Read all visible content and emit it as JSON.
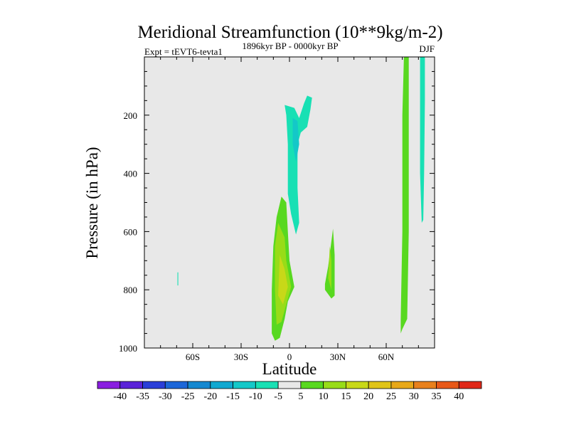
{
  "chart_data": {
    "type": "contour",
    "title": "Meridional Streamfunction (10**9kg/m-2)",
    "left_label": "Expt = tEVT6-tevta1",
    "center_label": "1896kyr BP - 0000kyr BP",
    "right_label": "DJF",
    "xlabel": "Latitude",
    "ylabel": "Pressure (in hPa)",
    "xlim": [
      -90,
      90
    ],
    "ylim": [
      1000,
      0
    ],
    "x_ticks": [
      {
        "value": -60,
        "label": "60S"
      },
      {
        "value": -30,
        "label": "30S"
      },
      {
        "value": 0,
        "label": "0"
      },
      {
        "value": 30,
        "label": "30N"
      },
      {
        "value": 60,
        "label": "60N"
      }
    ],
    "y_ticks": [
      {
        "value": 200,
        "label": "200"
      },
      {
        "value": 400,
        "label": "400"
      },
      {
        "value": 600,
        "label": "600"
      },
      {
        "value": 800,
        "label": "800"
      },
      {
        "value": 1000,
        "label": "1000"
      }
    ],
    "background_color": "#e8e8e8",
    "colorbar": {
      "labels": [
        "-40",
        "-35",
        "-30",
        "-25",
        "-20",
        "-15",
        "-10",
        "-5",
        "5",
        "10",
        "15",
        "20",
        "25",
        "30",
        "35",
        "40"
      ],
      "colors": [
        "#8a1ee0",
        "#5a22d8",
        "#2a3ed8",
        "#1c66d8",
        "#1488d0",
        "#10a8d0",
        "#14c8c8",
        "#18e0b4",
        "#e8e8e8",
        "#58d820",
        "#98dc18",
        "#c8d818",
        "#e0c418",
        "#e8a818",
        "#e8801c",
        "#e85818",
        "#e02818"
      ]
    },
    "regions": [
      {
        "name": "eq-upper-negative",
        "level": -5,
        "color": "#18e0b4",
        "points": [
          [
            -3,
            165
          ],
          [
            3,
            175
          ],
          [
            6,
            210
          ],
          [
            9,
            160
          ],
          [
            11,
            133
          ],
          [
            14,
            140
          ],
          [
            13,
            180
          ],
          [
            11,
            240
          ],
          [
            7,
            260
          ],
          [
            5,
            300
          ],
          [
            5,
            450
          ],
          [
            6,
            570
          ],
          [
            4,
            610
          ],
          [
            1,
            540
          ],
          [
            -1,
            470
          ],
          [
            -1,
            300
          ],
          [
            -2,
            200
          ]
        ]
      },
      {
        "name": "eq-upper-core",
        "level": -10,
        "color": "#14c8c8",
        "points": [
          [
            2,
            210
          ],
          [
            5,
            220
          ],
          [
            6,
            300
          ],
          [
            4,
            360
          ],
          [
            2,
            300
          ]
        ]
      },
      {
        "name": "south-small-negative",
        "level": -5,
        "color": "#18e0b4",
        "points": [
          [
            -69.5,
            740
          ],
          [
            -69,
            740
          ],
          [
            -69,
            785
          ],
          [
            -69.5,
            785
          ]
        ]
      },
      {
        "name": "eq-lower-positive",
        "level": 5,
        "color": "#58d820",
        "points": [
          [
            -5,
            480
          ],
          [
            -2,
            500
          ],
          [
            -1,
            600
          ],
          [
            0,
            700
          ],
          [
            3,
            790
          ],
          [
            -1,
            840
          ],
          [
            -3,
            900
          ],
          [
            -6,
            965
          ],
          [
            -9,
            975
          ],
          [
            -11,
            950
          ],
          [
            -11,
            800
          ],
          [
            -10,
            650
          ],
          [
            -8,
            550
          ]
        ]
      },
      {
        "name": "eq-lower-mid",
        "level": 10,
        "color": "#98dc18",
        "points": [
          [
            -7,
            570
          ],
          [
            -3,
            620
          ],
          [
            -2,
            700
          ],
          [
            1,
            790
          ],
          [
            -2,
            850
          ],
          [
            -5,
            910
          ],
          [
            -8,
            920
          ],
          [
            -9,
            800
          ],
          [
            -9,
            650
          ]
        ]
      },
      {
        "name": "eq-lower-core",
        "level": 15,
        "color": "#c8d818",
        "points": [
          [
            -6,
            680
          ],
          [
            -3,
            730
          ],
          [
            -1,
            790
          ],
          [
            -4,
            850
          ],
          [
            -7,
            820
          ]
        ]
      },
      {
        "name": "nh-tropics-positive",
        "level": 5,
        "color": "#58d820",
        "points": [
          [
            27,
            590
          ],
          [
            28,
            680
          ],
          [
            28,
            820
          ],
          [
            26,
            830
          ],
          [
            22,
            800
          ],
          [
            22,
            780
          ],
          [
            24,
            720
          ]
        ]
      },
      {
        "name": "nh-tropics-core",
        "level": 10,
        "color": "#98dc18",
        "points": [
          [
            25,
            650
          ],
          [
            26,
            700
          ],
          [
            26,
            800
          ],
          [
            24,
            760
          ]
        ]
      },
      {
        "name": "nh-60-positive",
        "level": 5,
        "color": "#58d820",
        "points": [
          [
            71,
            0
          ],
          [
            74,
            0
          ],
          [
            74,
            200
          ],
          [
            74,
            600
          ],
          [
            73,
            900
          ],
          [
            70,
            935
          ],
          [
            69,
            950
          ],
          [
            69,
            900
          ],
          [
            70,
            600
          ],
          [
            70,
            200
          ]
        ]
      },
      {
        "name": "nh-80-negative",
        "level": -5,
        "color": "#18e0b4",
        "points": [
          [
            81,
            0
          ],
          [
            84,
            0
          ],
          [
            84,
            150
          ],
          [
            83.5,
            400
          ],
          [
            83,
            560
          ],
          [
            82,
            570
          ],
          [
            81,
            400
          ],
          [
            81,
            150
          ]
        ]
      }
    ]
  }
}
